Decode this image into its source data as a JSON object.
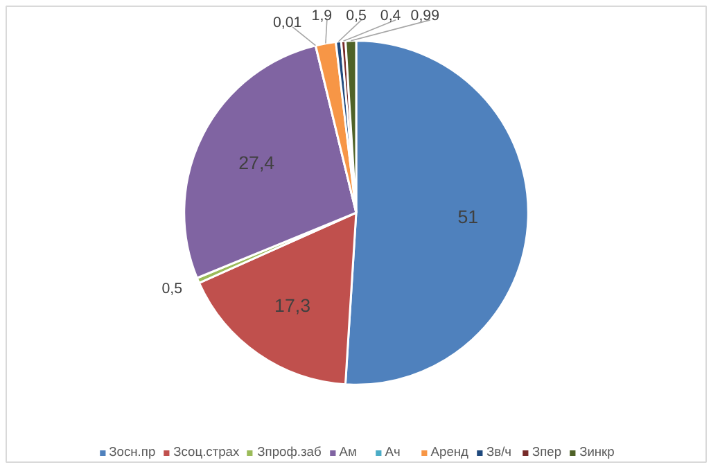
{
  "chart_data": {
    "type": "pie",
    "categories": [
      "Зосн.пр",
      "Зсоц.страх",
      "Зпроф.заб",
      "Ам",
      "Ач",
      "Аренд",
      "Зв/ч",
      "Зпер",
      "Зинкр"
    ],
    "values": [
      51,
      17.3,
      0.5,
      27.4,
      0.01,
      1.9,
      0.5,
      0.4,
      0.99
    ],
    "value_labels": [
      "51",
      "17,3",
      "0,5",
      "27,4",
      "0,01",
      "1,9",
      "0,5",
      "0,4",
      "0,99"
    ],
    "colors": [
      "#4f81bd",
      "#c0504d",
      "#9bbb59",
      "#8064a2",
      "#4bacc6",
      "#f79646",
      "#1f497d",
      "#772c2a",
      "#4f6228"
    ],
    "legend": "bottom"
  }
}
